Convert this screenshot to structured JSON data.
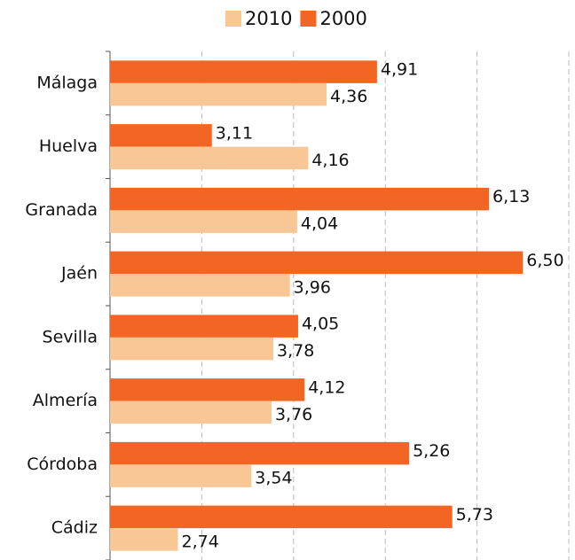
{
  "chart_data": {
    "type": "bar",
    "orientation": "horizontal",
    "categories": [
      "Málaga",
      "Huelva",
      "Granada",
      "Jaén",
      "Sevilla",
      "Almería",
      "Córdoba",
      "Cádiz"
    ],
    "series": [
      {
        "name": "2010",
        "color": "#f9c796",
        "values": [
          4.36,
          4.16,
          4.04,
          3.96,
          3.78,
          3.76,
          3.54,
          2.74
        ],
        "value_labels": [
          "4,36",
          "4,16",
          "4,04",
          "3,96",
          "3,78",
          "3,76",
          "3,54",
          "2,74"
        ]
      },
      {
        "name": "2000",
        "color": "#f26522",
        "values": [
          4.91,
          3.11,
          6.13,
          6.5,
          4.05,
          4.12,
          5.26,
          5.73
        ],
        "value_labels": [
          "4,91",
          "3,11",
          "6,13",
          "6,50",
          "4,05",
          "4,12",
          "5,26",
          "5,73"
        ]
      }
    ],
    "xlim": [
      2,
      7
    ],
    "xticks": [
      2,
      3,
      4,
      5,
      6,
      7
    ],
    "grid": true,
    "legend": "top"
  }
}
